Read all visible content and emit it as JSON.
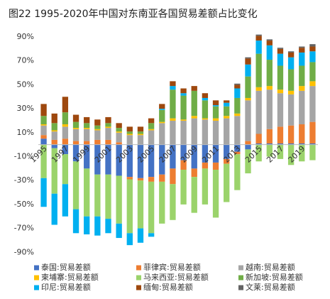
{
  "chart_data": {
    "type": "stacked-bar",
    "title": "图22 1995-2020年中国对东南亚各国贸易差额占比变化",
    "categories": [
      "1995",
      null,
      "1997",
      null,
      "1999",
      null,
      "2001",
      null,
      "2003",
      null,
      "2005",
      null,
      "2007",
      null,
      "2009",
      null,
      "2011",
      null,
      "2013",
      null,
      "2015",
      null,
      "2017",
      null,
      "2019",
      null
    ],
    "ylim": [
      -94,
      93
    ],
    "yticks": [
      {
        "value": 90,
        "label": "90%"
      },
      {
        "value": 70,
        "label": "70%"
      },
      {
        "value": 50,
        "label": "50%"
      },
      {
        "value": 30,
        "label": "30%"
      },
      {
        "value": 10,
        "label": "10%"
      },
      {
        "value": -10,
        "label": "-10%"
      },
      {
        "value": -30,
        "label": "-30%"
      },
      {
        "value": -50,
        "label": "-50%"
      },
      {
        "value": -70,
        "label": "-70%"
      },
      {
        "value": -90,
        "label": "-90%"
      }
    ],
    "grid": false,
    "series": [
      {
        "name": "泰国:贸易差额",
        "color": "#4472c4",
        "values": [
          5,
          -3,
          -8,
          -14,
          -20,
          -25,
          -25,
          -26,
          -27,
          -28,
          -27,
          -25,
          -20,
          -13,
          -20,
          -15,
          -15,
          -12,
          -6,
          -4,
          1,
          1,
          1,
          1,
          1,
          1
        ]
      },
      {
        "name": "菲律宾:贸易差额",
        "color": "#ed7d31",
        "values": [
          3,
          4,
          5,
          3,
          3,
          4,
          4,
          2,
          -2,
          -2,
          -4,
          -6,
          -13,
          -8,
          -7,
          -5,
          -6,
          -4,
          -2,
          3,
          8,
          12,
          14,
          15,
          16,
          18
        ]
      },
      {
        "name": "越南:贸易差额",
        "color": "#a5a5a5",
        "values": [
          8,
          7,
          10,
          10,
          10,
          8,
          10,
          8,
          8,
          8,
          12,
          18,
          20,
          20,
          22,
          21,
          20,
          22,
          24,
          34,
          36,
          33,
          28,
          26,
          28,
          30
        ]
      },
      {
        "name": "柬埔寨:贸易差额",
        "color": "#ffc000",
        "values": [
          1,
          1,
          2,
          1,
          1,
          1,
          1,
          1,
          1,
          1,
          1,
          1,
          2,
          1,
          2,
          1,
          2,
          2,
          2,
          2,
          3,
          3,
          3,
          3,
          4,
          4
        ]
      },
      {
        "name": "马来西亚:贸易差额",
        "color": "#9bd36b",
        "values": [
          -28,
          -38,
          -25,
          -40,
          -40,
          -35,
          -37,
          -40,
          -45,
          -40,
          -43,
          -35,
          -30,
          -29,
          -30,
          -30,
          -40,
          -32,
          -30,
          -20,
          -14,
          -10,
          -12,
          -17,
          -14,
          -13
        ]
      },
      {
        "name": "新加坡:贸易差额",
        "color": "#70ad47",
        "values": [
          7,
          6,
          10,
          5,
          4,
          3,
          3,
          3,
          2,
          2,
          5,
          10,
          24,
          20,
          21,
          15,
          10,
          8,
          13,
          18,
          28,
          22,
          20,
          18,
          17,
          16
        ]
      },
      {
        "name": "印尼:贸易差额",
        "color": "#00b0f0",
        "values": [
          -24,
          -26,
          -27,
          -20,
          -15,
          -16,
          -12,
          -12,
          -10,
          -12,
          -3,
          1,
          3,
          2,
          0,
          2,
          1,
          3,
          8,
          10,
          11,
          12,
          10,
          10,
          11,
          9
        ]
      },
      {
        "name": "缅甸:贸易差额",
        "color": "#9e480e",
        "values": [
          10,
          8,
          13,
          6,
          5,
          5,
          5,
          4,
          4,
          4,
          4,
          4,
          4,
          4,
          4,
          4,
          4,
          2,
          3,
          5,
          4,
          4,
          4,
          4,
          4,
          4
        ]
      },
      {
        "name": "文莱:贸易差额",
        "color": "#636363",
        "values": [
          0,
          0,
          0,
          0,
          0,
          0,
          0,
          0,
          0,
          0,
          0,
          0,
          0,
          0,
          0,
          0,
          0,
          0,
          1,
          1,
          1,
          1,
          1,
          1,
          1,
          2
        ]
      }
    ]
  }
}
